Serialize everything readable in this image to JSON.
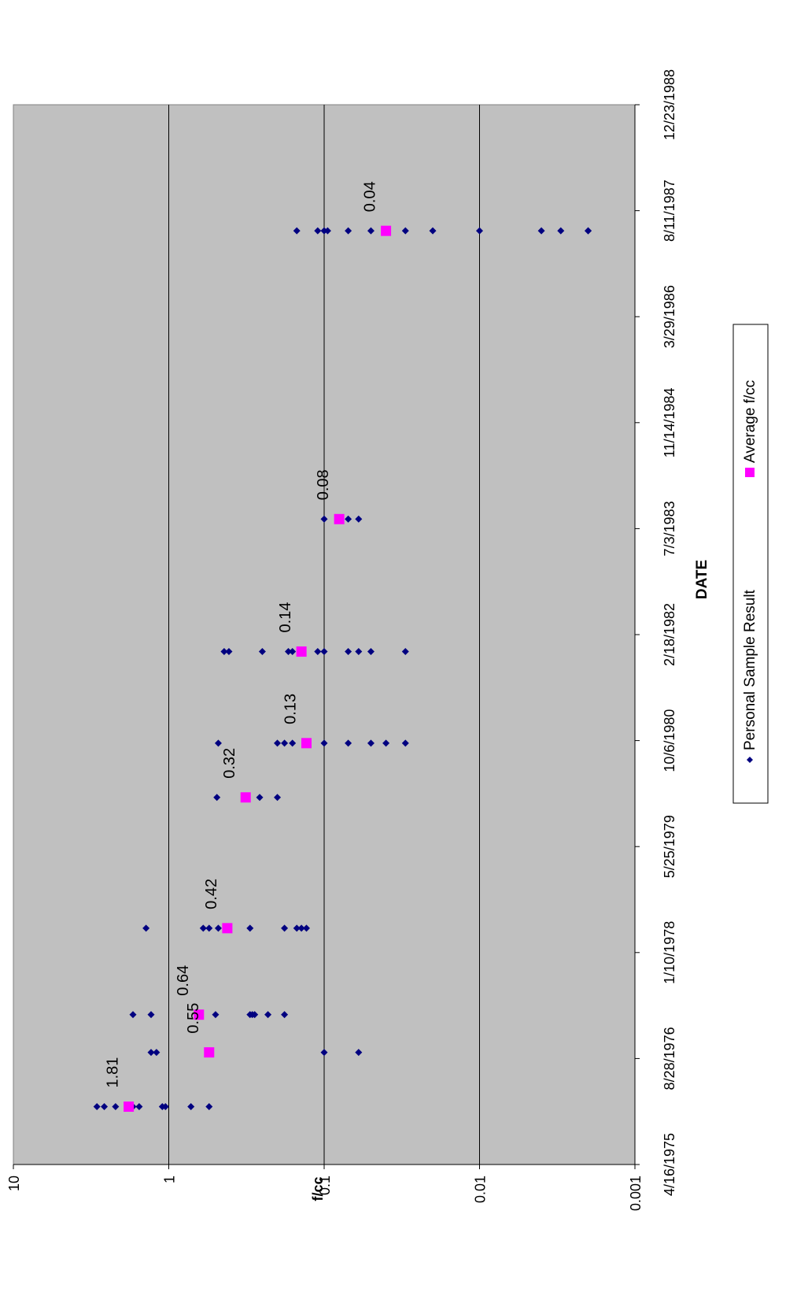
{
  "chart_data": {
    "type": "scatter",
    "title": "",
    "xlabel": "DATE",
    "ylabel": "f/cc",
    "y_scale": "log",
    "ylim": [
      0.001,
      10
    ],
    "y_ticks": [
      "10",
      "1",
      "0.1",
      "0.01",
      "0.001"
    ],
    "xlim": [
      "4/16/1975",
      "12/23/1988"
    ],
    "x_ticks": [
      "4/16/1975",
      "8/28/1976",
      "1/10/1978",
      "5/25/1979",
      "10/6/1980",
      "2/18/1982",
      "7/3/1983",
      "11/14/1984",
      "3/29/1986",
      "8/11/1987",
      "12/23/1988"
    ],
    "grid": "major horizontal lines",
    "legend_position": "bottom",
    "plot_background": "#c0c0c0",
    "series": [
      {
        "name": "Personal Sample Result",
        "color": "#000080",
        "marker": "diamond",
        "points": [
          {
            "x": "1976-01-14",
            "ys": [
              2.9,
              2.6,
              2.2,
              1.7,
              1.55,
              1.1,
              1.05,
              0.72,
              0.55
            ]
          },
          {
            "x": "1976-09-26",
            "ys": [
              1.3,
              1.2,
              0.1,
              0.06
            ]
          },
          {
            "x": "1977-03-23",
            "ys": [
              1.7,
              1.3,
              0.5,
              0.3,
              0.29,
              0.28,
              0.23,
              0.18
            ]
          },
          {
            "x": "1978-05-05",
            "ys": [
              1.4,
              0.6,
              0.55,
              0.48,
              0.3,
              0.18,
              0.15,
              0.14,
              0.13
            ]
          },
          {
            "x": "1980-01-12",
            "ys": [
              0.49,
              0.26,
              0.2
            ]
          },
          {
            "x": "1980-09-24",
            "ys": [
              0.48,
              0.2,
              0.18,
              0.16,
              0.1,
              0.07,
              0.05,
              0.04,
              0.03
            ]
          },
          {
            "x": "1981-11-30",
            "ys": [
              0.44,
              0.41,
              0.25,
              0.17,
              0.16,
              0.11,
              0.1,
              0.07,
              0.06,
              0.05,
              0.03
            ]
          },
          {
            "x": "1983-08-17",
            "ys": [
              0.1,
              0.07,
              0.06
            ]
          },
          {
            "x": "1987-05-08",
            "ys": [
              0.15,
              0.11,
              0.1,
              0.095,
              0.07,
              0.05,
              0.03,
              0.02,
              0.01,
              0.004,
              0.003,
              0.002,
              0.002
            ]
          }
        ]
      },
      {
        "name": "Average f/cc",
        "color": "#ff00ff",
        "marker": "square",
        "points": [
          {
            "x": "1976-01-14",
            "y": 1.81,
            "label": "1.81"
          },
          {
            "x": "1976-09-26",
            "y": 0.55,
            "label": "0.55"
          },
          {
            "x": "1977-03-23",
            "y": 0.64,
            "label": "0.64"
          },
          {
            "x": "1978-05-05",
            "y": 0.42,
            "label": "0.42"
          },
          {
            "x": "1980-01-12",
            "y": 0.32,
            "label": "0.32"
          },
          {
            "x": "1980-09-24",
            "y": 0.13,
            "label": "0.13"
          },
          {
            "x": "1981-11-30",
            "y": 0.14,
            "label": "0.14"
          },
          {
            "x": "1983-08-17",
            "y": 0.08,
            "label": "0.08"
          },
          {
            "x": "1987-05-08",
            "y": 0.04,
            "label": "0.04"
          }
        ]
      }
    ]
  }
}
